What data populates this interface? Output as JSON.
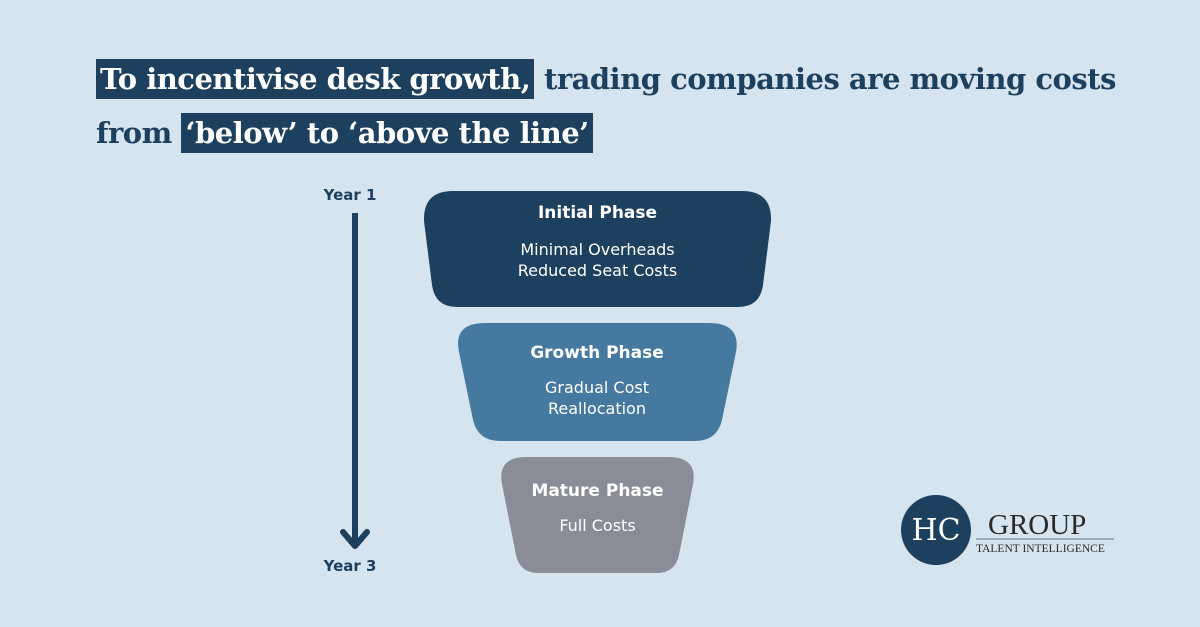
{
  "title": {
    "line1_highlight": "To incentivise desk growth,",
    "line1_rest": "trading companies are moving costs",
    "line2_prefix": "from",
    "line2_highlight": "‘below’ to ‘above the line’"
  },
  "timeline": {
    "start": "Year 1",
    "end": "Year 3"
  },
  "phases": [
    {
      "title": "Initial Phase",
      "lines": [
        "Minimal Overheads",
        "Reduced Seat Costs"
      ],
      "color": "#1c405e"
    },
    {
      "title": "Growth Phase",
      "lines": [
        "Gradual Cost",
        "Reallocation"
      ],
      "color": "#4679a0"
    },
    {
      "title": "Mature Phase",
      "lines": [
        "Full Costs"
      ],
      "color": "#8a8c98"
    }
  ],
  "logo": {
    "monogram": "HC",
    "name": "GROUP",
    "tagline": "TALENT INTELLIGENCE"
  },
  "colors": {
    "background": "#d6e4f0",
    "navy": "#1c405e"
  }
}
